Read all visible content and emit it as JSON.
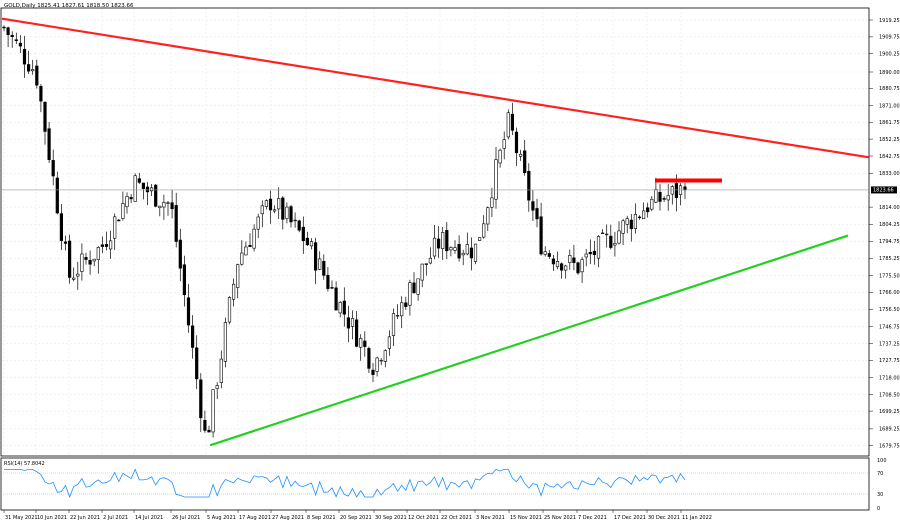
{
  "header": {
    "symbol_title": "GOLD,Daily  1825.41 1827.61 1818.50 1823.66"
  },
  "rsi": {
    "label": "RSI(14) 57.8042",
    "levels": [
      "100",
      "70",
      "30",
      "0"
    ]
  },
  "price_badge": "1823.66",
  "chart_data": {
    "type": "candlestick",
    "title": "GOLD,Daily",
    "ohlc_readout": {
      "open": 1825.41,
      "high": 1827.61,
      "low": 1818.5,
      "close": 1823.66
    },
    "ylim": [
      1674,
      1926
    ],
    "y_ticks": [
      "1919.25",
      "1909.75",
      "1900.25",
      "1890.00",
      "1880.75",
      "1871.00",
      "1861.75",
      "1852.25",
      "1842.75",
      "1833.00",
      "1814.00",
      "1804.25",
      "1794.75",
      "1785.25",
      "1775.50",
      "1766.00",
      "1756.50",
      "1746.75",
      "1737.25",
      "1727.75",
      "1718.00",
      "1708.50",
      "1699.25",
      "1689.25",
      "1679.75"
    ],
    "x_ticks": [
      "31 May 2021",
      "10 Jun 2021",
      "22 Jun 2021",
      "2 Jul 2021",
      "14 Jul 2021",
      "26 Jul 2021",
      "5 Aug 2021",
      "17 Aug 2021",
      "27 Aug 2021",
      "8 Sep 2021",
      "20 Sep 2021",
      "30 Sep 2021",
      "12 Oct 2021",
      "22 Oct 2021",
      "3 Nov 2021",
      "15 Nov 2021",
      "25 Nov 2021",
      "7 Dec 2021",
      "17 Dec 2021",
      "30 Dec 2021",
      "11 Jan 2022"
    ],
    "key_price_points": [
      {
        "date": "31 May 2021",
        "value": 1915
      },
      {
        "date": "10 Jun 2021",
        "value": 1890
      },
      {
        "date": "22 Jun 2021",
        "value": 1775
      },
      {
        "date": "2 Jul 2021",
        "value": 1792
      },
      {
        "date": "14 Jul 2021",
        "value": 1828
      },
      {
        "date": "26 Jul 2021",
        "value": 1815
      },
      {
        "date": "5 Aug 2021",
        "value": 1682
      },
      {
        "date": "17 Aug 2021",
        "value": 1785
      },
      {
        "date": "27 Aug 2021",
        "value": 1818
      },
      {
        "date": "8 Sep 2021",
        "value": 1795
      },
      {
        "date": "20 Sep 2021",
        "value": 1760
      },
      {
        "date": "30 Sep 2021",
        "value": 1725
      },
      {
        "date": "12 Oct 2021",
        "value": 1765
      },
      {
        "date": "22 Oct 2021",
        "value": 1795
      },
      {
        "date": "3 Nov 2021",
        "value": 1790
      },
      {
        "date": "15 Nov 2021",
        "value": 1862
      },
      {
        "date": "25 Nov 2021",
        "value": 1790
      },
      {
        "date": "7 Dec 2021",
        "value": 1780
      },
      {
        "date": "17 Dec 2021",
        "value": 1798
      },
      {
        "date": "30 Dec 2021",
        "value": 1815
      },
      {
        "date": "11 Jan 2022",
        "value": 1823.66
      }
    ],
    "trendlines": [
      {
        "color": "#ff2020",
        "role": "resistance",
        "from": {
          "date": "31 May 2021",
          "value": 1920
        },
        "to": {
          "date": "right edge",
          "value": 1842
        }
      },
      {
        "color": "#22d022",
        "role": "support",
        "from": {
          "date": "5 Aug 2021",
          "value": 1680
        },
        "to": {
          "date": "late Jan 2022",
          "value": 1798
        }
      }
    ],
    "horizontal_level": {
      "color": "#ff0000",
      "value": 1829
    },
    "current_price_line": 1823.66,
    "rsi_indicator": {
      "period": 14,
      "value": 57.8042,
      "range": [
        0,
        100
      ],
      "levels": [
        70,
        30
      ]
    },
    "grid": true
  }
}
